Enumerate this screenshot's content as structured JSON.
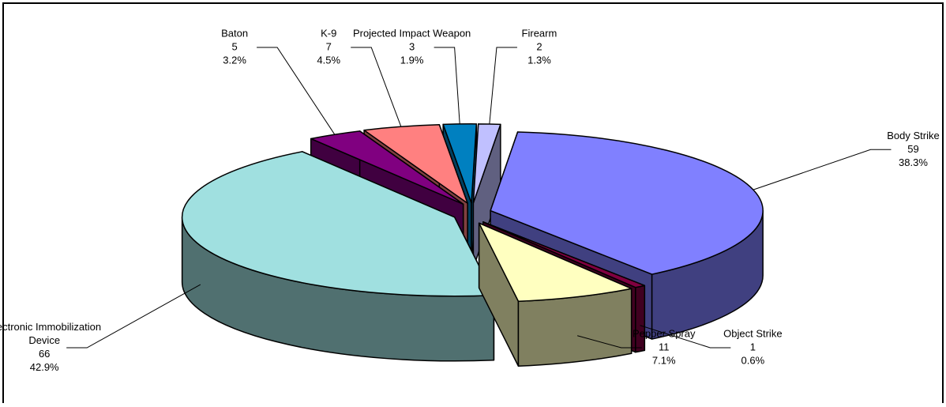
{
  "chart_data": {
    "type": "pie",
    "style": "3d-exploded",
    "categories": [
      "Body Strike",
      "Object Strike",
      "Pepper Spray",
      "Electronic Immobilization Device",
      "Baton",
      "K-9",
      "Projected Impact Weapon",
      "Firearm"
    ],
    "values": [
      59,
      1,
      11,
      66,
      5,
      7,
      3,
      2
    ],
    "percents": [
      "38.3%",
      "0.6%",
      "7.1%",
      "42.9%",
      "3.2%",
      "4.5%",
      "1.9%",
      "1.3%"
    ],
    "value_labels": [
      "59",
      "1",
      "11",
      "66",
      "5",
      "7",
      "3",
      "2"
    ],
    "label_lines": [
      [
        "Body Strike"
      ],
      [
        "Object Strike"
      ],
      [
        "Pepper Spray"
      ],
      [
        "Electronic Immobilization",
        "Device"
      ],
      [
        "Baton"
      ],
      [
        "K-9"
      ],
      [
        "Projected Impact Weapon"
      ],
      [
        "Firearm"
      ]
    ],
    "colors": [
      "#8080ff",
      "#800040",
      "#ffffc0",
      "#a0e0e0",
      "#800080",
      "#ff8080",
      "#0080c0",
      "#c0c0ff"
    ],
    "side_colors": [
      "#404080",
      "#400020",
      "#808060",
      "#507070",
      "#400040",
      "#804040",
      "#004060",
      "#606080"
    ],
    "title": "",
    "legend": "none"
  }
}
